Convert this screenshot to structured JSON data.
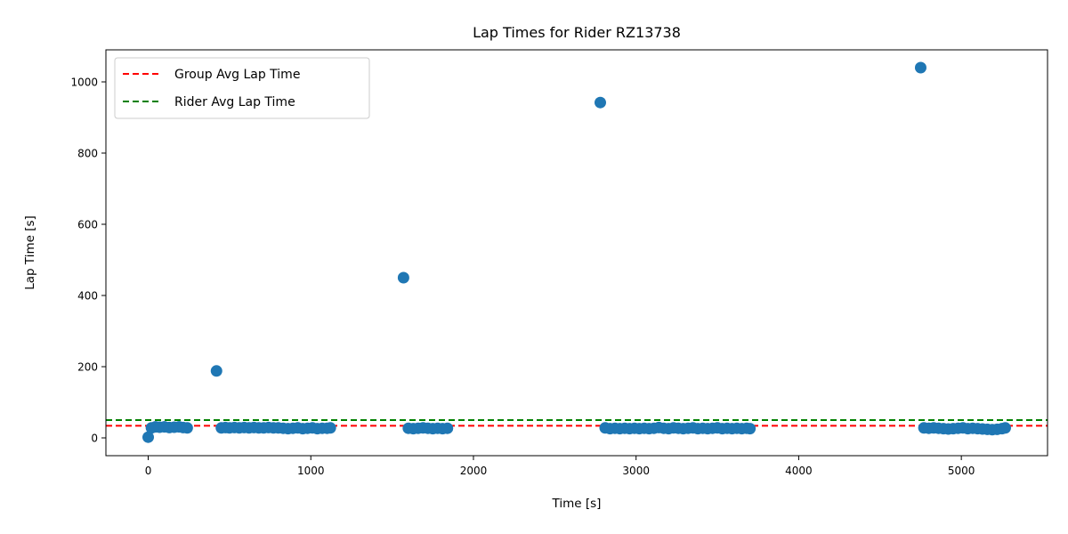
{
  "chart_data": {
    "type": "scatter",
    "title": "Lap Times for Rider RZ13738",
    "xlabel": "Time [s]",
    "ylabel": "Lap Time [s]",
    "xlim": [
      -260,
      5530
    ],
    "ylim": [
      -50,
      1090
    ],
    "xticks": [
      0,
      1000,
      2000,
      3000,
      4000,
      5000
    ],
    "yticks": [
      0,
      200,
      400,
      600,
      800,
      1000
    ],
    "grid": false,
    "legend_position": "upper left",
    "marker_color": "#1f77b4",
    "series": [
      {
        "type": "scatter",
        "x": [
          0,
          20,
          45,
          70,
          100,
          130,
          160,
          190,
          215,
          240,
          420,
          450,
          475,
          500,
          530,
          560,
          590,
          620,
          650,
          680,
          710,
          740,
          770,
          800,
          830,
          860,
          890,
          920,
          950,
          980,
          1010,
          1040,
          1070,
          1100,
          1120,
          1570,
          1600,
          1630,
          1660,
          1690,
          1720,
          1750,
          1780,
          1810,
          1840,
          2780,
          2810,
          2840,
          2870,
          2900,
          2930,
          2960,
          2990,
          3020,
          3050,
          3080,
          3110,
          3140,
          3170,
          3200,
          3230,
          3260,
          3290,
          3320,
          3350,
          3380,
          3410,
          3440,
          3470,
          3500,
          3530,
          3560,
          3590,
          3620,
          3650,
          3680,
          3700,
          4750,
          4770,
          4800,
          4830,
          4860,
          4890,
          4920,
          4950,
          4980,
          5010,
          5040,
          5070,
          5100,
          5130,
          5160,
          5190,
          5220,
          5250,
          5270
        ],
        "y": [
          2,
          28,
          31,
          30,
          31,
          29,
          30,
          31,
          29,
          28,
          188,
          28,
          29,
          28,
          29,
          28,
          29,
          28,
          29,
          28,
          28,
          29,
          28,
          28,
          27,
          26,
          27,
          28,
          26,
          27,
          28,
          26,
          27,
          27,
          28,
          450,
          27,
          26,
          27,
          28,
          27,
          26,
          27,
          26,
          27,
          942,
          28,
          26,
          27,
          26,
          27,
          26,
          27,
          26,
          27,
          26,
          27,
          29,
          27,
          26,
          28,
          27,
          26,
          27,
          28,
          26,
          27,
          26,
          27,
          28,
          26,
          27,
          26,
          27,
          26,
          27,
          26,
          1040,
          28,
          27,
          28,
          27,
          26,
          25,
          26,
          27,
          28,
          26,
          27,
          26,
          25,
          24,
          23,
          24,
          26,
          28
        ]
      },
      {
        "name": "Group Avg Lap Time",
        "type": "hline",
        "y": 34,
        "color": "#ff0000",
        "style": "dashed"
      },
      {
        "name": "Rider Avg Lap Time",
        "type": "hline",
        "y": 50,
        "color": "#008000",
        "style": "dashed"
      }
    ]
  }
}
